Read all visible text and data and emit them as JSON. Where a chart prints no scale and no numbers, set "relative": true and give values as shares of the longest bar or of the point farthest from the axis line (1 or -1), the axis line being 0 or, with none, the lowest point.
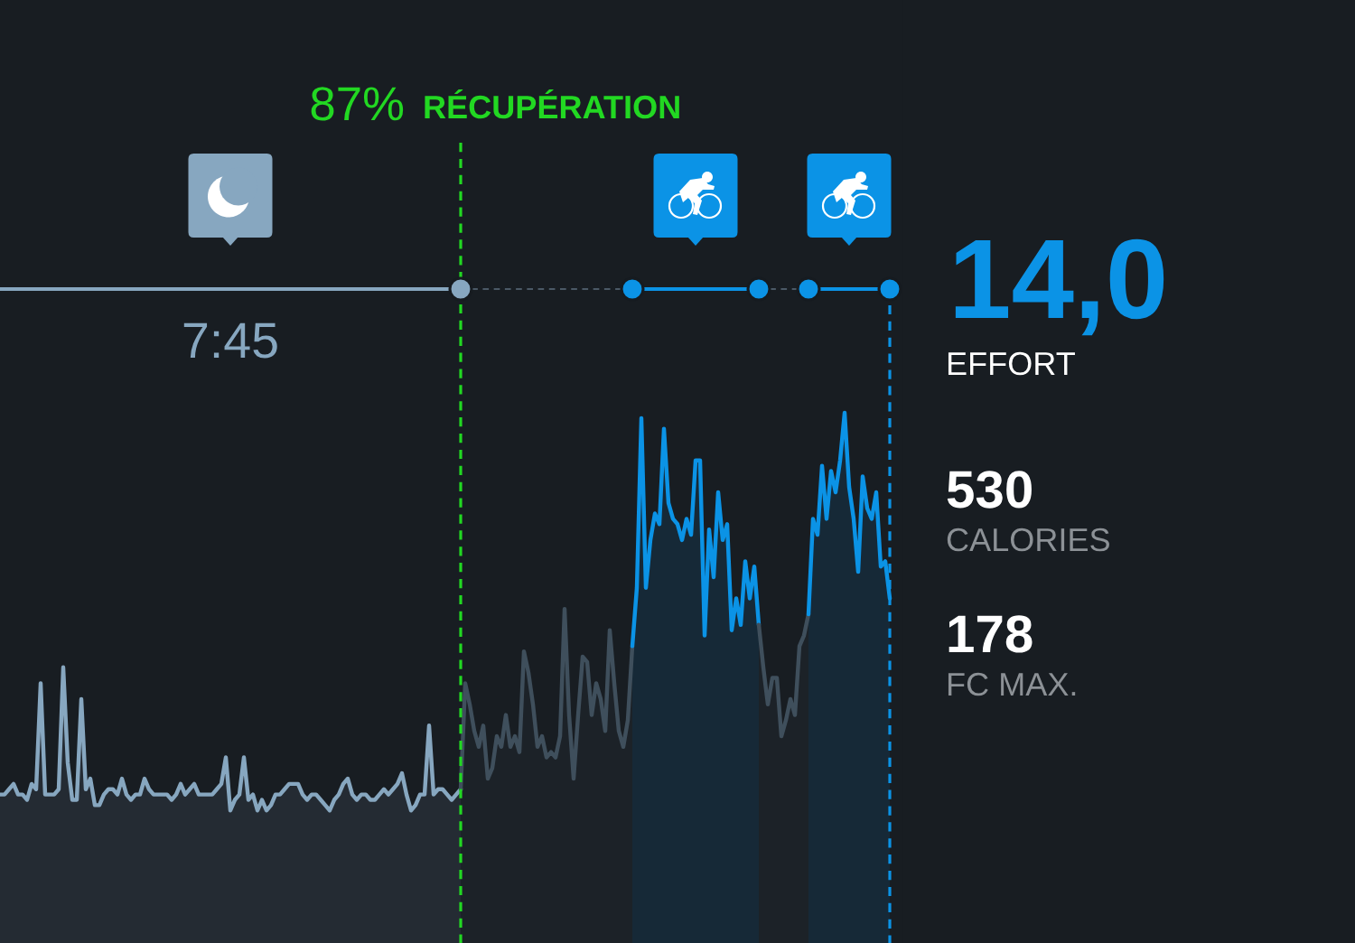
{
  "chart_data": {
    "type": "area",
    "relative": true,
    "categories": [
      null,
      null,
      null,
      null,
      null,
      null,
      null,
      null,
      null,
      null,
      null,
      null,
      null,
      null,
      null,
      null,
      null,
      null,
      null,
      null,
      null,
      null,
      null,
      null,
      null,
      null,
      null,
      null,
      null,
      null,
      null,
      null,
      null,
      null,
      null,
      null,
      null,
      null,
      null,
      null,
      null,
      null,
      null,
      null,
      null,
      null,
      null,
      null,
      null,
      null,
      null,
      null,
      null,
      null,
      null,
      null,
      null,
      null,
      null,
      null,
      null,
      null,
      null,
      null,
      null,
      null,
      null,
      null,
      null,
      null,
      null,
      null,
      null,
      null,
      null,
      null,
      null,
      null,
      null,
      null,
      null,
      null,
      null,
      null,
      null,
      null,
      null,
      null,
      null,
      null,
      null,
      null,
      null,
      null,
      null,
      null,
      null,
      null,
      null,
      null,
      null,
      null,
      null,
      null,
      null,
      null,
      null,
      null,
      null,
      null,
      null,
      null,
      null,
      null,
      null,
      null,
      null,
      null,
      null,
      null,
      null,
      null,
      null,
      null,
      null,
      null,
      null,
      null,
      null,
      null,
      null,
      null,
      null,
      null,
      null,
      null,
      null,
      null,
      null,
      null,
      null,
      null,
      null,
      null,
      null,
      null,
      null,
      null,
      null,
      null,
      null,
      null,
      null,
      null,
      null,
      null,
      null,
      null,
      null,
      null,
      null,
      null,
      null,
      null,
      null,
      null,
      null,
      null,
      null,
      null,
      null,
      null,
      null,
      null,
      null,
      null,
      null,
      null,
      null,
      null,
      null,
      null,
      null,
      null,
      null,
      null,
      null,
      null,
      null,
      null,
      null,
      null,
      null,
      null,
      null,
      null,
      null,
      null
    ],
    "series": [
      {
        "color": "#87a7c0",
        "values": [
          0.28,
          0.28,
          0.29,
          0.3,
          0.28,
          0.28,
          0.27,
          0.3,
          0.29,
          0.49,
          0.28,
          0.28,
          0.28,
          0.29,
          0.52,
          0.34,
          0.27,
          0.27,
          0.46,
          0.29,
          0.31,
          0.26,
          0.26,
          0.28,
          0.29,
          0.29,
          0.28,
          0.31,
          0.28,
          0.27,
          0.28,
          0.28,
          0.31,
          0.29,
          0.28,
          0.28,
          0.28,
          0.28,
          0.27,
          0.28,
          0.3,
          0.28,
          0.29,
          0.3,
          0.28,
          0.28,
          0.28,
          0.28,
          0.29,
          0.3,
          0.35,
          0.25,
          0.27,
          0.28,
          0.35,
          0.27,
          0.28,
          0.25,
          0.27,
          0.25,
          0.26,
          0.28,
          0.28,
          0.29,
          0.3,
          0.3,
          0.3,
          0.28,
          0.27,
          0.28,
          0.28,
          0.27,
          0.26,
          0.25,
          0.27,
          0.28,
          0.3,
          0.31,
          0.28,
          0.27,
          0.28,
          0.28,
          0.27,
          0.27,
          0.28,
          0.29,
          0.28,
          0.29,
          0.3,
          0.32,
          0.28,
          0.25,
          0.26,
          0.28,
          0.28,
          0.41,
          0.28,
          0.29,
          0.29,
          0.28,
          0.27,
          0.28,
          0.29,
          null,
          null,
          null,
          null,
          null,
          null,
          null,
          null,
          null,
          null,
          null,
          null,
          null,
          null,
          null,
          null,
          null,
          null,
          null,
          null,
          null,
          null,
          null,
          null,
          null,
          null,
          null,
          null,
          null,
          null,
          null,
          null,
          null,
          null,
          null,
          null,
          null,
          null,
          null,
          null,
          null,
          null,
          null,
          null,
          null,
          null,
          null,
          null,
          null,
          null,
          null,
          null,
          null,
          null,
          null,
          null,
          null,
          null,
          null,
          null,
          null,
          null,
          null,
          null,
          null,
          null,
          null,
          null,
          null,
          null,
          null,
          null,
          null,
          null,
          null,
          null,
          null,
          null,
          null,
          null,
          null,
          null,
          null,
          null,
          null,
          null,
          null,
          null,
          null,
          null,
          null,
          null,
          null,
          null,
          null
        ]
      },
      {
        "color": "#3f4f5c",
        "values": [
          null,
          null,
          null,
          null,
          null,
          null,
          null,
          null,
          null,
          null,
          null,
          null,
          null,
          null,
          null,
          null,
          null,
          null,
          null,
          null,
          null,
          null,
          null,
          null,
          null,
          null,
          null,
          null,
          null,
          null,
          null,
          null,
          null,
          null,
          null,
          null,
          null,
          null,
          null,
          null,
          null,
          null,
          null,
          null,
          null,
          null,
          null,
          null,
          null,
          null,
          null,
          null,
          null,
          null,
          null,
          null,
          null,
          null,
          null,
          null,
          null,
          null,
          null,
          null,
          null,
          null,
          null,
          null,
          null,
          null,
          null,
          null,
          null,
          null,
          null,
          null,
          null,
          null,
          null,
          null,
          null,
          null,
          null,
          null,
          null,
          null,
          null,
          null,
          null,
          null,
          null,
          null,
          null,
          null,
          null,
          null,
          null,
          null,
          null,
          null,
          null,
          null,
          0.29,
          0.49,
          0.45,
          0.4,
          0.37,
          0.41,
          0.31,
          0.33,
          0.39,
          0.37,
          0.43,
          0.37,
          0.39,
          0.36,
          0.55,
          0.51,
          0.45,
          0.37,
          0.39,
          0.35,
          0.36,
          0.35,
          0.39,
          0.63,
          0.43,
          0.31,
          0.43,
          0.54,
          0.53,
          0.43,
          0.49,
          0.46,
          0.4,
          0.59,
          0.49,
          0.4,
          0.37,
          0.42,
          0.56,
          null,
          null,
          null,
          null,
          null,
          null,
          null,
          null,
          null,
          null,
          null,
          null,
          null,
          null,
          null,
          null,
          null,
          null,
          null,
          null,
          null,
          null,
          null,
          null,
          null,
          null,
          null,
          null,
          null,
          null,
          null,
          null,
          null,
          null,
          null,
          null,
          null,
          null,
          null,
          null,
          null,
          null,
          null,
          null,
          null,
          null,
          null,
          null,
          null,
          null,
          null,
          null,
          null,
          null,
          null,
          null,
          null
        ]
      },
      {
        "color": "#0b93e6",
        "values": [
          null,
          null,
          null,
          null,
          null,
          null,
          null,
          null,
          null,
          null,
          null,
          null,
          null,
          null,
          null,
          null,
          null,
          null,
          null,
          null,
          null,
          null,
          null,
          null,
          null,
          null,
          null,
          null,
          null,
          null,
          null,
          null,
          null,
          null,
          null,
          null,
          null,
          null,
          null,
          null,
          null,
          null,
          null,
          null,
          null,
          null,
          null,
          null,
          null,
          null,
          null,
          null,
          null,
          null,
          null,
          null,
          null,
          null,
          null,
          null,
          null,
          null,
          null,
          null,
          null,
          null,
          null,
          null,
          null,
          null,
          null,
          null,
          null,
          null,
          null,
          null,
          null,
          null,
          null,
          null,
          null,
          null,
          null,
          null,
          null,
          null,
          null,
          null,
          null,
          null,
          null,
          null,
          null,
          null,
          null,
          null,
          null,
          null,
          null,
          null,
          null,
          null,
          null,
          null,
          null,
          null,
          null,
          null,
          null,
          null,
          null,
          null,
          null,
          null,
          null,
          null,
          null,
          null,
          null,
          null,
          null,
          null,
          null,
          null,
          null,
          null,
          null,
          null,
          null,
          null,
          null,
          null,
          null,
          null,
          null,
          null,
          null,
          null,
          null,
          null,
          0.56,
          0.67,
          0.99,
          0.67,
          0.76,
          0.81,
          0.79,
          0.97,
          0.83,
          0.8,
          0.79,
          0.76,
          0.8,
          0.77,
          0.91,
          0.91,
          0.58,
          0.78,
          0.69,
          0.85,
          0.76,
          0.79,
          0.59,
          0.65,
          0.6,
          0.72,
          0.65,
          0.71,
          0.6,
          null,
          null,
          null,
          null,
          null,
          null,
          null,
          null,
          null,
          null,
          null,
          null,
          null,
          null,
          null,
          null,
          null,
          null,
          null,
          null,
          null,
          null,
          null,
          null,
          null,
          null,
          null,
          null,
          null
        ]
      },
      {
        "color": "#3f4f5c",
        "values": [
          null,
          null,
          null,
          null,
          null,
          null,
          null,
          null,
          null,
          null,
          null,
          null,
          null,
          null,
          null,
          null,
          null,
          null,
          null,
          null,
          null,
          null,
          null,
          null,
          null,
          null,
          null,
          null,
          null,
          null,
          null,
          null,
          null,
          null,
          null,
          null,
          null,
          null,
          null,
          null,
          null,
          null,
          null,
          null,
          null,
          null,
          null,
          null,
          null,
          null,
          null,
          null,
          null,
          null,
          null,
          null,
          null,
          null,
          null,
          null,
          null,
          null,
          null,
          null,
          null,
          null,
          null,
          null,
          null,
          null,
          null,
          null,
          null,
          null,
          null,
          null,
          null,
          null,
          null,
          null,
          null,
          null,
          null,
          null,
          null,
          null,
          null,
          null,
          null,
          null,
          null,
          null,
          null,
          null,
          null,
          null,
          null,
          null,
          null,
          null,
          null,
          null,
          null,
          null,
          null,
          null,
          null,
          null,
          null,
          null,
          null,
          null,
          null,
          null,
          null,
          null,
          null,
          null,
          null,
          null,
          null,
          null,
          null,
          null,
          null,
          null,
          null,
          null,
          null,
          null,
          null,
          null,
          null,
          null,
          null,
          null,
          null,
          null,
          null,
          null,
          null,
          null,
          null,
          null,
          null,
          null,
          null,
          null,
          null,
          null,
          null,
          null,
          null,
          null,
          null,
          null,
          null,
          null,
          null,
          null,
          null,
          null,
          null,
          null,
          null,
          null,
          null,
          null,
          0.6,
          0.52,
          0.45,
          0.5,
          0.5,
          0.39,
          0.42,
          0.46,
          0.43,
          0.56,
          0.58,
          0.62,
          null,
          null,
          null,
          null,
          null,
          null,
          null,
          null,
          null,
          null,
          null,
          null,
          null,
          null,
          null,
          null,
          null,
          null
        ]
      },
      {
        "color": "#0b93e6",
        "values": [
          null,
          null,
          null,
          null,
          null,
          null,
          null,
          null,
          null,
          null,
          null,
          null,
          null,
          null,
          null,
          null,
          null,
          null,
          null,
          null,
          null,
          null,
          null,
          null,
          null,
          null,
          null,
          null,
          null,
          null,
          null,
          null,
          null,
          null,
          null,
          null,
          null,
          null,
          null,
          null,
          null,
          null,
          null,
          null,
          null,
          null,
          null,
          null,
          null,
          null,
          null,
          null,
          null,
          null,
          null,
          null,
          null,
          null,
          null,
          null,
          null,
          null,
          null,
          null,
          null,
          null,
          null,
          null,
          null,
          null,
          null,
          null,
          null,
          null,
          null,
          null,
          null,
          null,
          null,
          null,
          null,
          null,
          null,
          null,
          null,
          null,
          null,
          null,
          null,
          null,
          null,
          null,
          null,
          null,
          null,
          null,
          null,
          null,
          null,
          null,
          null,
          null,
          null,
          null,
          null,
          null,
          null,
          null,
          null,
          null,
          null,
          null,
          null,
          null,
          null,
          null,
          null,
          null,
          null,
          null,
          null,
          null,
          null,
          null,
          null,
          null,
          null,
          null,
          null,
          null,
          null,
          null,
          null,
          null,
          null,
          null,
          null,
          null,
          null,
          null,
          null,
          null,
          null,
          null,
          null,
          null,
          null,
          null,
          null,
          null,
          null,
          null,
          null,
          null,
          null,
          null,
          null,
          null,
          null,
          null,
          null,
          null,
          null,
          null,
          null,
          null,
          null,
          null,
          null,
          null,
          null,
          null,
          null,
          null,
          null,
          null,
          null,
          null,
          null,
          0.62,
          0.8,
          0.77,
          0.9,
          0.8,
          0.89,
          0.85,
          0.91,
          1.0,
          0.86,
          0.8,
          0.7,
          0.88,
          0.82,
          0.8,
          0.85,
          0.71,
          0.72,
          0.65
        ]
      }
    ],
    "annotations": [
      "87%",
      "RÉCUPÉRATION",
      "7:45",
      "14,0",
      "EFFORT",
      "530",
      "CALORIES",
      "178",
      "FC MAX."
    ]
  }
}
